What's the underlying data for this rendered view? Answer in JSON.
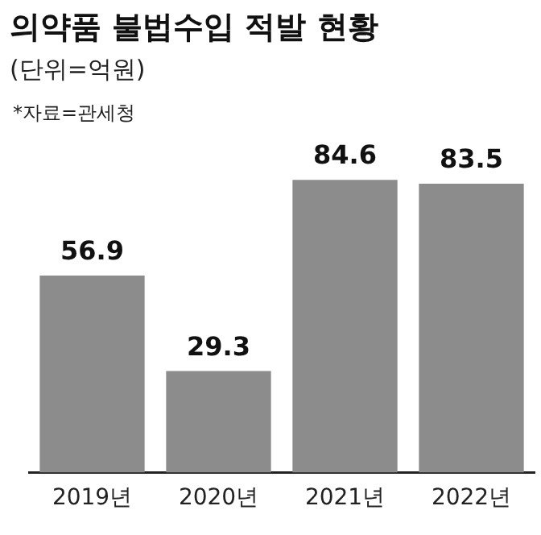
{
  "chart_data": {
    "type": "bar",
    "title": "의약품 불법수입 적발 현황",
    "subtitle": "(단위=억원)",
    "annotations": [
      "*자료=관세청"
    ],
    "categories": [
      "2019년",
      "2020년",
      "2021년",
      "2022년"
    ],
    "values": [
      56.9,
      29.3,
      84.6,
      83.5
    ],
    "color": "#8c8c8c",
    "data_labels": true,
    "grid": false,
    "legend": false
  }
}
